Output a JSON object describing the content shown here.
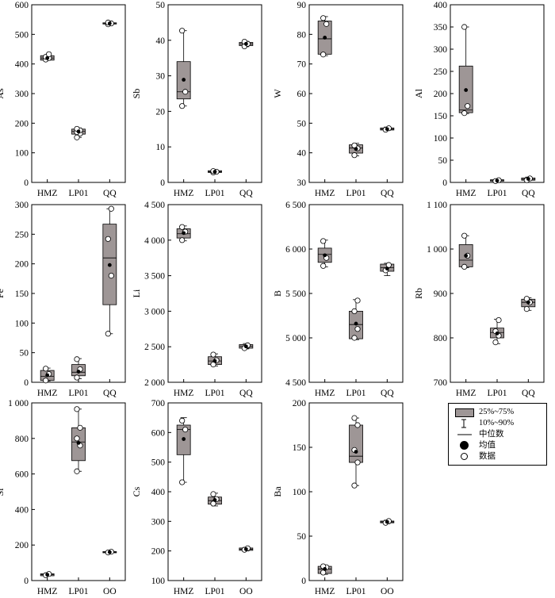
{
  "colors": {
    "box_fill": "#9e9696",
    "frame": "#000000",
    "point_fill": "#ffffff",
    "mean_fill": "#000000"
  },
  "legend": {
    "items": [
      {
        "label": "25%~75%",
        "symbol": "box"
      },
      {
        "label": "10%~90%",
        "symbol": "whisker"
      },
      {
        "label": "中位数",
        "symbol": "median-line"
      },
      {
        "label": "均值",
        "symbol": "mean-dot"
      },
      {
        "label": "数据",
        "symbol": "open-circle"
      }
    ]
  },
  "chart_data": [
    {
      "type": "box",
      "ylabel": "As",
      "categories": [
        "HMZ",
        "LP01",
        "QQ"
      ],
      "ylim": [
        0,
        600
      ],
      "yticks": [
        {
          "v": 0,
          "label": "0"
        },
        {
          "v": 100,
          "label": "100"
        },
        {
          "v": 200,
          "label": "200"
        },
        {
          "v": 300,
          "label": "300"
        },
        {
          "v": 400,
          "label": "400"
        },
        {
          "v": 500,
          "label": "500"
        },
        {
          "v": 600,
          "label": "600"
        }
      ],
      "boxes": [
        {
          "category": "HMZ",
          "q1": 413,
          "q3": 428,
          "median": 420,
          "whisker_low": 413,
          "whisker_high": 430,
          "mean": 420,
          "points": [
            415,
            420,
            424,
            433
          ]
        },
        {
          "category": "LP01",
          "q1": 163,
          "q3": 180,
          "median": 172,
          "whisker_low": 152,
          "whisker_high": 184,
          "mean": 172,
          "points": [
            152,
            165,
            170,
            176,
            181
          ]
        },
        {
          "category": "QQ",
          "q1": 535,
          "q3": 539,
          "median": 537,
          "whisker_low": 533,
          "whisker_high": 541,
          "mean": 537,
          "points": [
            534,
            537,
            540
          ]
        }
      ]
    },
    {
      "type": "box",
      "ylabel": "Sb",
      "categories": [
        "HMZ",
        "LP01",
        "QQ"
      ],
      "ylim": [
        0,
        50
      ],
      "yticks": [
        {
          "v": 0,
          "label": "0"
        },
        {
          "v": 10,
          "label": "10"
        },
        {
          "v": 20,
          "label": "20"
        },
        {
          "v": 30,
          "label": "30"
        },
        {
          "v": 40,
          "label": "40"
        },
        {
          "v": 50,
          "label": "50"
        }
      ],
      "boxes": [
        {
          "category": "HMZ",
          "q1": 23.5,
          "q3": 34,
          "median": 25.5,
          "whisker_low": 21.5,
          "whisker_high": 42.7,
          "mean": 28.9,
          "points": [
            21.5,
            25.5,
            42.7
          ]
        },
        {
          "category": "LP01",
          "q1": 2.8,
          "q3": 3.3,
          "median": 3.0,
          "whisker_low": 2.7,
          "whisker_high": 3.4,
          "mean": 3.0,
          "points": [
            2.8,
            3.0,
            3.2
          ]
        },
        {
          "category": "QQ",
          "q1": 38.5,
          "q3": 39.4,
          "median": 39.0,
          "whisker_low": 38.2,
          "whisker_high": 39.7,
          "mean": 39.0,
          "points": [
            38.3,
            39.0,
            39.6
          ]
        }
      ]
    },
    {
      "type": "box",
      "ylabel": "W",
      "categories": [
        "HMZ",
        "LP01",
        "QQ"
      ],
      "ylim": [
        30,
        90
      ],
      "yticks": [
        {
          "v": 30,
          "label": "30"
        },
        {
          "v": 40,
          "label": "40"
        },
        {
          "v": 50,
          "label": "50"
        },
        {
          "v": 60,
          "label": "60"
        },
        {
          "v": 70,
          "label": "70"
        },
        {
          "v": 80,
          "label": "80"
        },
        {
          "v": 90,
          "label": "90"
        }
      ],
      "boxes": [
        {
          "category": "HMZ",
          "q1": 73.3,
          "q3": 84.5,
          "median": 78.5,
          "whisker_low": 72.8,
          "whisker_high": 86,
          "mean": 78.9,
          "points": [
            73.2,
            83.5,
            85.5
          ]
        },
        {
          "category": "LP01",
          "q1": 39.9,
          "q3": 42.7,
          "median": 41.6,
          "whisker_low": 39.0,
          "whisker_high": 43.2,
          "mean": 41.3,
          "points": [
            39.2,
            41.5,
            42.5
          ]
        },
        {
          "category": "QQ",
          "q1": 47.7,
          "q3": 48.4,
          "median": 48.0,
          "whisker_low": 47.5,
          "whisker_high": 48.7,
          "mean": 48.0,
          "points": [
            47.8,
            48.3
          ]
        }
      ]
    },
    {
      "type": "box",
      "ylabel": "Al",
      "categories": [
        "HMZ",
        "LP01",
        "QQ"
      ],
      "ylim": [
        0,
        400
      ],
      "yticks": [
        {
          "v": 0,
          "label": "0"
        },
        {
          "v": 50,
          "label": "50"
        },
        {
          "v": 100,
          "label": "100"
        },
        {
          "v": 150,
          "label": "150"
        },
        {
          "v": 200,
          "label": "200"
        },
        {
          "v": 250,
          "label": "250"
        },
        {
          "v": 300,
          "label": "300"
        },
        {
          "v": 350,
          "label": "350"
        },
        {
          "v": 400,
          "label": "400"
        }
      ],
      "boxes": [
        {
          "category": "HMZ",
          "q1": 157,
          "q3": 262,
          "median": 163,
          "whisker_low": 155,
          "whisker_high": 350,
          "mean": 208,
          "points": [
            156,
            172,
            350
          ]
        },
        {
          "category": "LP01",
          "q1": 3,
          "q3": 6,
          "median": 4,
          "whisker_low": 2,
          "whisker_high": 7,
          "mean": 4,
          "points": [
            3,
            5
          ]
        },
        {
          "category": "QQ",
          "q1": 5,
          "q3": 10,
          "median": 7,
          "whisker_low": 4,
          "whisker_high": 12,
          "mean": 8,
          "points": [
            5,
            9
          ]
        }
      ]
    },
    {
      "type": "box",
      "ylabel": "Fe",
      "categories": [
        "HMZ",
        "LP01",
        "QQ"
      ],
      "ylim": [
        0,
        300
      ],
      "yticks": [
        {
          "v": 0,
          "label": "0"
        },
        {
          "v": 50,
          "label": "50"
        },
        {
          "v": 100,
          "label": "100"
        },
        {
          "v": 150,
          "label": "150"
        },
        {
          "v": 200,
          "label": "200"
        },
        {
          "v": 250,
          "label": "250"
        },
        {
          "v": 300,
          "label": "300"
        }
      ],
      "boxes": [
        {
          "category": "HMZ",
          "q1": 3,
          "q3": 20,
          "median": 10,
          "whisker_low": 2,
          "whisker_high": 24,
          "mean": 12,
          "points": [
            3,
            14,
            23
          ]
        },
        {
          "category": "LP01",
          "q1": 11,
          "q3": 30,
          "median": 17,
          "whisker_low": 6,
          "whisker_high": 40,
          "mean": 18,
          "points": [
            8,
            22,
            39
          ]
        },
        {
          "category": "QQ",
          "q1": 131,
          "q3": 267,
          "median": 210,
          "whisker_low": 82,
          "whisker_high": 293,
          "mean": 198,
          "points": [
            82,
            180,
            242,
            293
          ]
        }
      ]
    },
    {
      "type": "box",
      "ylabel": "Li",
      "categories": [
        "HMZ",
        "LP01",
        "QQ"
      ],
      "ylim": [
        2000,
        4500
      ],
      "yticks": [
        {
          "v": 2000,
          "label": "2 000"
        },
        {
          "v": 2500,
          "label": "2 500"
        },
        {
          "v": 3000,
          "label": "3 000"
        },
        {
          "v": 3500,
          "label": "3 500"
        },
        {
          "v": 4000,
          "label": "4 000"
        },
        {
          "v": 4500,
          "label": "4 500"
        }
      ],
      "boxes": [
        {
          "category": "HMZ",
          "q1": 4030,
          "q3": 4160,
          "median": 4090,
          "whisker_low": 3990,
          "whisker_high": 4200,
          "mean": 4100,
          "points": [
            4000,
            4120,
            4185
          ]
        },
        {
          "category": "LP01",
          "q1": 2250,
          "q3": 2360,
          "median": 2300,
          "whisker_low": 2230,
          "whisker_high": 2400,
          "mean": 2300,
          "points": [
            2250,
            2310,
            2390
          ]
        },
        {
          "category": "QQ",
          "q1": 2480,
          "q3": 2530,
          "median": 2505,
          "whisker_low": 2470,
          "whisker_high": 2545,
          "mean": 2505,
          "points": [
            2480,
            2520
          ]
        }
      ]
    },
    {
      "type": "box",
      "ylabel": "B",
      "categories": [
        "HMZ",
        "LP01",
        "QQ"
      ],
      "ylim": [
        4500,
        6500
      ],
      "yticks": [
        {
          "v": 4500,
          "label": "4 500"
        },
        {
          "v": 5000,
          "label": "5 000"
        },
        {
          "v": 5500,
          "label": "5 500"
        },
        {
          "v": 6000,
          "label": "6 000"
        },
        {
          "v": 6500,
          "label": "6 500"
        }
      ],
      "boxes": [
        {
          "category": "HMZ",
          "q1": 5850,
          "q3": 6010,
          "median": 5940,
          "whisker_low": 5800,
          "whisker_high": 6100,
          "mean": 5930,
          "points": [
            5810,
            5900,
            6090
          ]
        },
        {
          "category": "LP01",
          "q1": 4990,
          "q3": 5300,
          "median": 5150,
          "whisker_low": 4980,
          "whisker_high": 5430,
          "mean": 5160,
          "points": [
            5000,
            5100,
            5300,
            5420
          ]
        },
        {
          "category": "QQ",
          "q1": 5750,
          "q3": 5830,
          "median": 5790,
          "whisker_low": 5700,
          "whisker_high": 5840,
          "mean": 5780,
          "points": [
            5760,
            5820
          ]
        }
      ]
    },
    {
      "type": "box",
      "ylabel": "Rb",
      "categories": [
        "HMZ",
        "LP01",
        "QQ"
      ],
      "ylim": [
        700,
        1100
      ],
      "yticks": [
        {
          "v": 700,
          "label": "700"
        },
        {
          "v": 800,
          "label": "800"
        },
        {
          "v": 900,
          "label": "900"
        },
        {
          "v": 1000,
          "label": "1 000"
        },
        {
          "v": 1100,
          "label": "1 100"
        }
      ],
      "boxes": [
        {
          "category": "HMZ",
          "q1": 960,
          "q3": 1010,
          "median": 975,
          "whisker_low": 958,
          "whisker_high": 1030,
          "mean": 985,
          "points": [
            960,
            985,
            1030
          ]
        },
        {
          "category": "LP01",
          "q1": 800,
          "q3": 822,
          "median": 812,
          "whisker_low": 787,
          "whisker_high": 842,
          "mean": 810,
          "points": [
            790,
            805,
            815,
            840
          ]
        },
        {
          "category": "QQ",
          "q1": 870,
          "q3": 887,
          "median": 880,
          "whisker_low": 862,
          "whisker_high": 890,
          "mean": 880,
          "points": [
            865,
            880,
            888
          ]
        }
      ]
    },
    {
      "type": "box",
      "ylabel": "Sr",
      "categories": [
        "HMZ",
        "LP01",
        "QQ"
      ],
      "ylim": [
        0,
        1000
      ],
      "yticks": [
        {
          "v": 0,
          "label": "0"
        },
        {
          "v": 200,
          "label": "200"
        },
        {
          "v": 400,
          "label": "400"
        },
        {
          "v": 600,
          "label": "600"
        },
        {
          "v": 800,
          "label": "800"
        },
        {
          "v": 1000,
          "label": "1 000"
        }
      ],
      "boxes": [
        {
          "category": "HMZ",
          "q1": 27,
          "q3": 38,
          "median": 33,
          "whisker_low": 25,
          "whisker_high": 40,
          "mean": 33,
          "points": [
            30,
            37
          ]
        },
        {
          "category": "LP01",
          "q1": 675,
          "q3": 860,
          "median": 780,
          "whisker_low": 615,
          "whisker_high": 965,
          "mean": 775,
          "points": [
            615,
            760,
            800,
            860,
            965
          ]
        },
        {
          "category": "QQ",
          "q1": 158,
          "q3": 163,
          "median": 160,
          "whisker_low": 155,
          "whisker_high": 165,
          "mean": 160,
          "points": [
            158,
            162
          ]
        }
      ]
    },
    {
      "type": "box",
      "ylabel": "Cs",
      "categories": [
        "HMZ",
        "LP01",
        "QQ"
      ],
      "ylim": [
        100,
        700
      ],
      "yticks": [
        {
          "v": 100,
          "label": "100"
        },
        {
          "v": 200,
          "label": "200"
        },
        {
          "v": 300,
          "label": "300"
        },
        {
          "v": 400,
          "label": "400"
        },
        {
          "v": 500,
          "label": "500"
        },
        {
          "v": 600,
          "label": "600"
        },
        {
          "v": 700,
          "label": "700"
        }
      ],
      "boxes": [
        {
          "category": "HMZ",
          "q1": 525,
          "q3": 625,
          "median": 610,
          "whisker_low": 432,
          "whisker_high": 650,
          "mean": 578,
          "points": [
            432,
            610,
            640
          ]
        },
        {
          "category": "LP01",
          "q1": 358,
          "q3": 382,
          "median": 370,
          "whisker_low": 352,
          "whisker_high": 395,
          "mean": 372,
          "points": [
            360,
            375,
            392
          ]
        },
        {
          "category": "QQ",
          "q1": 202,
          "q3": 210,
          "median": 206,
          "whisker_low": 200,
          "whisker_high": 212,
          "mean": 206,
          "points": [
            204,
            209
          ]
        }
      ]
    },
    {
      "type": "box",
      "ylabel": "Ba",
      "categories": [
        "HMZ",
        "LP01",
        "QQ"
      ],
      "ylim": [
        0,
        200
      ],
      "yticks": [
        {
          "v": 0,
          "label": "0"
        },
        {
          "v": 50,
          "label": "50"
        },
        {
          "v": 100,
          "label": "100"
        },
        {
          "v": 150,
          "label": "150"
        },
        {
          "v": 200,
          "label": "200"
        }
      ],
      "boxes": [
        {
          "category": "HMZ",
          "q1": 8,
          "q3": 16,
          "median": 13,
          "whisker_low": 7,
          "whisker_high": 17,
          "mean": 13,
          "points": [
            9,
            15,
            16
          ]
        },
        {
          "category": "LP01",
          "q1": 133,
          "q3": 175,
          "median": 140,
          "whisker_low": 107,
          "whisker_high": 183,
          "mean": 145,
          "points": [
            107,
            133,
            147,
            175,
            183
          ]
        },
        {
          "category": "QQ",
          "q1": 65,
          "q3": 67,
          "median": 66,
          "whisker_low": 64,
          "whisker_high": 68,
          "mean": 66,
          "points": [
            65,
            67
          ]
        }
      ]
    }
  ]
}
